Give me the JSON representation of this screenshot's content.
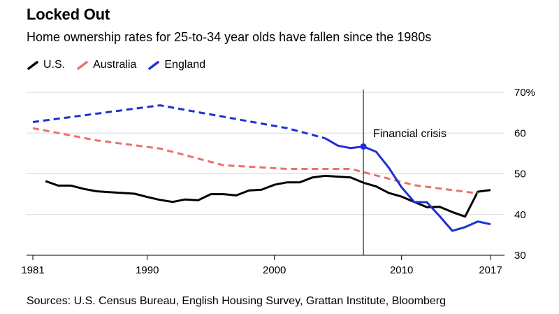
{
  "chart_data": {
    "type": "line",
    "title": "Locked Out",
    "subtitle": "Home ownership rates for 25-to-34 year olds have fallen since the 1980s",
    "source": "Sources: U.S. Census Bureau, English Housing Survey, Grattan Institute, Bloomberg",
    "x_ticks": [
      "1981",
      "1990",
      "2000",
      "2010",
      "2017"
    ],
    "y_ticks": [
      "30",
      "40",
      "50",
      "60",
      "70%"
    ],
    "xlim": [
      1981,
      2017
    ],
    "ylim": [
      30,
      70
    ],
    "legend_position": "top-left",
    "annotation": {
      "label": "Financial crisis",
      "x": 2007,
      "marker_y": 56.7
    },
    "series": [
      {
        "name": "U.S.",
        "color": "#000000",
        "style": "solid",
        "points": [
          [
            1982,
            48.2
          ],
          [
            1983,
            47.1
          ],
          [
            1984,
            47.1
          ],
          [
            1985,
            46.3
          ],
          [
            1986,
            45.7
          ],
          [
            1987,
            45.5
          ],
          [
            1988,
            45.3
          ],
          [
            1989,
            45.1
          ],
          [
            1990,
            44.3
          ],
          [
            1991,
            43.6
          ],
          [
            1992,
            43.1
          ],
          [
            1993,
            43.7
          ],
          [
            1994,
            43.5
          ],
          [
            1995,
            45.0
          ],
          [
            1996,
            45.0
          ],
          [
            1997,
            44.7
          ],
          [
            1998,
            45.9
          ],
          [
            1999,
            46.1
          ],
          [
            2000,
            47.3
          ],
          [
            2001,
            47.9
          ],
          [
            2002,
            47.9
          ],
          [
            2003,
            49.1
          ],
          [
            2004,
            49.5
          ],
          [
            2005,
            49.3
          ],
          [
            2006,
            49.1
          ],
          [
            2007,
            47.8
          ],
          [
            2008,
            46.9
          ],
          [
            2009,
            45.3
          ],
          [
            2010,
            44.4
          ],
          [
            2011,
            43.1
          ],
          [
            2012,
            41.8
          ],
          [
            2013,
            41.9
          ],
          [
            2014,
            40.6
          ],
          [
            2015,
            39.5
          ],
          [
            2016,
            45.6
          ],
          [
            2017,
            46.0
          ]
        ]
      },
      {
        "name": "Australia",
        "color": "#e8726e",
        "style": "dashed",
        "points": [
          [
            1981,
            61.2
          ],
          [
            1986,
            58.2
          ],
          [
            1991,
            56.2
          ],
          [
            1996,
            52.1
          ],
          [
            2001,
            51.2
          ],
          [
            2006,
            51.2
          ],
          [
            2011,
            47.2
          ],
          [
            2016,
            45.2
          ]
        ]
      },
      {
        "name": "England",
        "color": "#1f2fd6",
        "style": "dashed-then-solid",
        "solid_from_x": 2004,
        "points": [
          [
            1981,
            62.7
          ],
          [
            1991,
            66.8
          ],
          [
            2001,
            61.2
          ],
          [
            2004,
            58.7
          ],
          [
            2005,
            56.9
          ],
          [
            2006,
            56.3
          ],
          [
            2007,
            56.7
          ],
          [
            2008,
            55.4
          ],
          [
            2009,
            51.5
          ],
          [
            2010,
            46.7
          ],
          [
            2011,
            43.1
          ],
          [
            2012,
            43.0
          ],
          [
            2013,
            39.6
          ],
          [
            2014,
            36.0
          ],
          [
            2015,
            36.9
          ],
          [
            2016,
            38.3
          ],
          [
            2017,
            37.6
          ]
        ]
      }
    ]
  }
}
